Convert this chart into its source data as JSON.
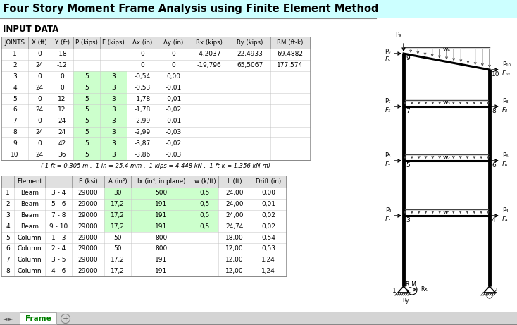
{
  "title": "Four Story Moment Frame Analysis using Finite Element Method",
  "title_bg": "#ccffff",
  "tab_name": "Frame",
  "input_header": "INPUT DATA",
  "joints_cols": [
    "JOINTS",
    "X (ft)",
    "Y (ft)",
    "P (kips)",
    "F (kips)",
    "Δx (in)",
    "Δy (in)",
    "Rx (kips)",
    "Ry (kips)",
    "RM (ft-k)"
  ],
  "joints_data": [
    [
      "1",
      "0",
      "-18",
      "",
      "",
      "0",
      "0",
      "-4,2037",
      "22,4933",
      "69,4882"
    ],
    [
      "2",
      "24",
      "-12",
      "",
      "",
      "0",
      "0",
      "-19,796",
      "65,5067",
      "177,574"
    ],
    [
      "3",
      "0",
      "0",
      "5",
      "3",
      "-0,54",
      "0,00",
      "",
      "",
      ""
    ],
    [
      "4",
      "24",
      "0",
      "5",
      "3",
      "-0,53",
      "-0,01",
      "",
      "",
      ""
    ],
    [
      "5",
      "0",
      "12",
      "5",
      "3",
      "-1,78",
      "-0,01",
      "",
      "",
      ""
    ],
    [
      "6",
      "24",
      "12",
      "5",
      "3",
      "-1,78",
      "-0,02",
      "",
      "",
      ""
    ],
    [
      "7",
      "0",
      "24",
      "5",
      "3",
      "-2,99",
      "-0,01",
      "",
      "",
      ""
    ],
    [
      "8",
      "24",
      "24",
      "5",
      "3",
      "-2,99",
      "-0,03",
      "",
      "",
      ""
    ],
    [
      "9",
      "0",
      "42",
      "5",
      "3",
      "-3,87",
      "-0,02",
      "",
      "",
      ""
    ],
    [
      "10",
      "24",
      "36",
      "5",
      "3",
      "-3,86",
      "-0,03",
      "",
      "",
      ""
    ]
  ],
  "note": "( 1 ft = 0.305 m ,  1 in = 25.4 mm ,  1 kips = 4.448 kN ,  1 ft-k = 1.356 kN-m)",
  "elem_data": [
    [
      "1",
      "Beam",
      "3 - 4",
      "29000",
      "30",
      "500",
      "0,5",
      "24,00",
      "0,00"
    ],
    [
      "2",
      "Beam",
      "5 - 6",
      "29000",
      "17,2",
      "191",
      "0,5",
      "24,00",
      "0,01"
    ],
    [
      "3",
      "Beam",
      "7 - 8",
      "29000",
      "17,2",
      "191",
      "0,5",
      "24,00",
      "0,02"
    ],
    [
      "4",
      "Beam",
      "9 - 10",
      "29000",
      "17,2",
      "191",
      "0,5",
      "24,74",
      "0,02"
    ],
    [
      "5",
      "Column",
      "1 - 3",
      "29000",
      "50",
      "800",
      "",
      "18,00",
      "0,54"
    ],
    [
      "6",
      "Column",
      "2 - 4",
      "29000",
      "50",
      "800",
      "",
      "12,00",
      "0,53"
    ],
    [
      "7",
      "Column",
      "3 - 5",
      "29000",
      "17,2",
      "191",
      "",
      "12,00",
      "1,24"
    ],
    [
      "8",
      "Column",
      "4 - 6",
      "29000",
      "17,2",
      "191",
      "",
      "12,00",
      "1,24"
    ]
  ],
  "col_widths_j": [
    38,
    32,
    32,
    38,
    38,
    44,
    44,
    58,
    58,
    56
  ],
  "col_widths_e": [
    18,
    44,
    38,
    46,
    38,
    86,
    38,
    46,
    50
  ],
  "frame_color": "#000000",
  "green": "#ccffcc",
  "gray_header": "#e0e0e0",
  "title_color": "#ccffff"
}
